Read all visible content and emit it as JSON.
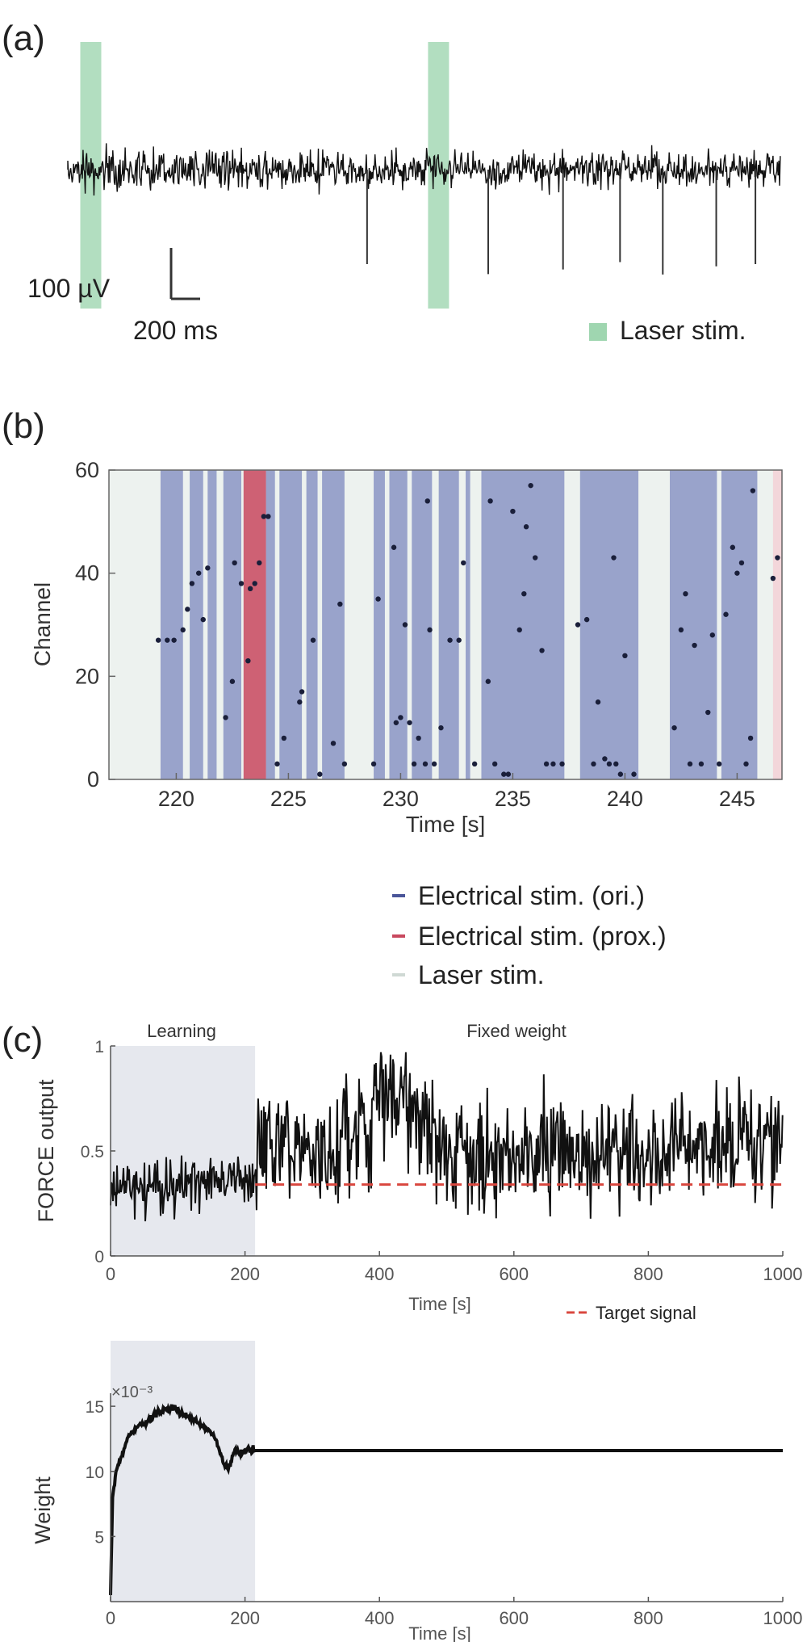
{
  "colors": {
    "trace": "#111111",
    "laser": "#9fd6b0",
    "electrical_ori": "#8a95c4",
    "electrical_prox": "#c8485e",
    "learning_shade": "#e6e8ee",
    "target": "#d9473f",
    "axis": "#555555"
  },
  "chart_data": [
    {
      "type": "line",
      "panel_label": "(a)",
      "scalebar": {
        "voltage_label": "100 µV",
        "time_label": "200 ms"
      },
      "legend": [
        {
          "label": "Laser stim.",
          "color": "#9fd6b0"
        }
      ],
      "laser_stim_fraction": [
        0.03,
        0.518
      ],
      "spike_fraction": [
        0.42,
        0.59,
        0.695,
        0.775,
        0.835,
        0.91,
        0.965
      ],
      "legend_position": "bottom-right"
    },
    {
      "type": "scatter",
      "panel_label": "(b)",
      "xlabel": "Time [s]",
      "ylabel": "Channel",
      "xlim": [
        217,
        247
      ],
      "ylim": [
        0,
        60
      ],
      "xticks": [
        "220",
        "225",
        "230",
        "235",
        "240",
        "245"
      ],
      "yticks": [
        "0",
        "20",
        "40",
        "60"
      ],
      "legend": [
        {
          "label": "Electrical stim. (ori.)",
          "color": "#8a95c4"
        },
        {
          "label": "Electrical stim. (prox.)",
          "color": "#c8485e"
        },
        {
          "label": "Laser stim.",
          "color": "#dfe8e4"
        }
      ],
      "legend_position": "bottom-right",
      "laser_windows": [
        [
          217,
          247
        ]
      ],
      "ori_windows": [
        [
          219.3,
          220.3
        ],
        [
          220.6,
          221.2
        ],
        [
          221.4,
          221.8
        ],
        [
          222.1,
          222.9
        ],
        [
          224.0,
          224.4
        ],
        [
          224.6,
          225.6
        ],
        [
          225.8,
          226.3
        ],
        [
          226.5,
          227.5
        ],
        [
          228.8,
          229.3
        ],
        [
          229.5,
          230.3
        ],
        [
          230.5,
          231.4
        ],
        [
          231.7,
          232.6
        ],
        [
          232.9,
          233.1
        ],
        [
          233.6,
          237.3
        ],
        [
          238.0,
          240.6
        ],
        [
          242.0,
          244.1
        ],
        [
          244.3,
          245.9
        ]
      ],
      "prox_windows": [
        [
          223.0,
          224.0
        ],
        [
          246.6,
          247.0
        ]
      ],
      "points": [
        [
          219.2,
          27
        ],
        [
          219.6,
          27
        ],
        [
          219.9,
          27
        ],
        [
          220.3,
          29
        ],
        [
          220.5,
          33
        ],
        [
          220.7,
          38
        ],
        [
          221.0,
          40
        ],
        [
          221.2,
          31
        ],
        [
          221.4,
          41
        ],
        [
          222.2,
          12
        ],
        [
          222.5,
          19
        ],
        [
          222.6,
          42
        ],
        [
          222.9,
          38
        ],
        [
          223.2,
          23
        ],
        [
          223.3,
          37
        ],
        [
          223.5,
          38
        ],
        [
          223.7,
          42
        ],
        [
          223.9,
          51
        ],
        [
          224.1,
          51
        ],
        [
          224.5,
          3
        ],
        [
          224.8,
          8
        ],
        [
          225.5,
          15
        ],
        [
          225.6,
          17
        ],
        [
          226.1,
          27
        ],
        [
          226.4,
          1
        ],
        [
          227.0,
          7
        ],
        [
          227.3,
          34
        ],
        [
          227.5,
          3
        ],
        [
          228.8,
          3
        ],
        [
          229.0,
          35
        ],
        [
          229.7,
          45
        ],
        [
          229.8,
          11
        ],
        [
          230.0,
          12
        ],
        [
          230.2,
          30
        ],
        [
          230.4,
          11
        ],
        [
          230.6,
          3
        ],
        [
          230.8,
          8
        ],
        [
          231.1,
          3
        ],
        [
          231.2,
          54
        ],
        [
          231.3,
          29
        ],
        [
          231.5,
          3
        ],
        [
          231.8,
          10
        ],
        [
          232.2,
          27
        ],
        [
          232.6,
          27
        ],
        [
          232.8,
          42
        ],
        [
          233.3,
          3
        ],
        [
          233.9,
          19
        ],
        [
          234.0,
          54
        ],
        [
          234.2,
          3
        ],
        [
          234.6,
          1
        ],
        [
          234.8,
          1
        ],
        [
          235.0,
          52
        ],
        [
          235.3,
          29
        ],
        [
          235.5,
          36
        ],
        [
          235.6,
          49
        ],
        [
          235.8,
          57
        ],
        [
          236.0,
          43
        ],
        [
          236.3,
          25
        ],
        [
          236.5,
          3
        ],
        [
          236.8,
          3
        ],
        [
          237.2,
          3
        ],
        [
          237.9,
          30
        ],
        [
          238.3,
          31
        ],
        [
          238.6,
          3
        ],
        [
          238.8,
          15
        ],
        [
          239.1,
          4
        ],
        [
          239.3,
          3
        ],
        [
          239.5,
          43
        ],
        [
          239.6,
          3
        ],
        [
          239.8,
          1
        ],
        [
          240.0,
          24
        ],
        [
          240.4,
          1
        ],
        [
          242.2,
          10
        ],
        [
          242.5,
          29
        ],
        [
          242.7,
          36
        ],
        [
          242.9,
          3
        ],
        [
          243.1,
          26
        ],
        [
          243.4,
          3
        ],
        [
          243.7,
          13
        ],
        [
          243.9,
          28
        ],
        [
          244.2,
          3
        ],
        [
          244.5,
          32
        ],
        [
          244.8,
          45
        ],
        [
          245.0,
          40
        ],
        [
          245.2,
          42
        ],
        [
          245.4,
          3
        ],
        [
          245.6,
          8
        ],
        [
          245.7,
          56
        ],
        [
          246.6,
          39
        ],
        [
          246.8,
          43
        ]
      ]
    },
    {
      "type": "line",
      "panel_label": "(c)",
      "xlabel": "Time [s]",
      "ylabel": "FORCE output",
      "xlim": [
        0,
        1000
      ],
      "ylim": [
        0,
        1
      ],
      "xticks": [
        "0",
        "200",
        "400",
        "600",
        "800",
        "1000"
      ],
      "yticks": [
        "0",
        "0.5",
        "1"
      ],
      "phase_labels": {
        "learning": "Learning",
        "fixed": "Fixed weight"
      },
      "learning_window": [
        0,
        215
      ],
      "target_level": 0.34,
      "target_window": [
        215,
        1000
      ],
      "legend": [
        {
          "label": "Target signal",
          "color": "#d9473f"
        }
      ],
      "legend_position": "bottom-right",
      "series": [
        {
          "x": [
            0,
            215,
            220,
            290,
            340,
            430,
            530,
            1000
          ],
          "y": [
            0.32,
            0.37,
            0.58,
            0.52,
            0.48,
            0.8,
            0.45,
            0.53
          ]
        }
      ]
    },
    {
      "type": "line",
      "panel_label": "",
      "xlabel": "Time [s]",
      "ylabel": "Weight",
      "xlim": [
        0,
        1000
      ],
      "ylim": [
        0,
        16
      ],
      "scale_label": "×10⁻³",
      "xticks": [
        "0",
        "200",
        "400",
        "600",
        "800",
        "1000"
      ],
      "yticks": [
        "5",
        "10",
        "15"
      ],
      "learning_window": [
        0,
        215
      ],
      "series": [
        {
          "x": [
            0,
            3,
            8,
            15,
            25,
            40,
            55,
            70,
            85,
            95,
            110,
            130,
            150,
            160,
            168,
            175,
            185,
            195,
            205,
            215,
            230,
            1000
          ],
          "y": [
            0.5,
            8,
            10,
            11,
            12.5,
            13.5,
            13.8,
            14.5,
            14.8,
            14.9,
            14.3,
            13.8,
            13,
            12,
            10.5,
            10.2,
            11.6,
            11.4,
            11.7,
            11.6,
            11.6,
            11.6
          ]
        }
      ]
    }
  ]
}
